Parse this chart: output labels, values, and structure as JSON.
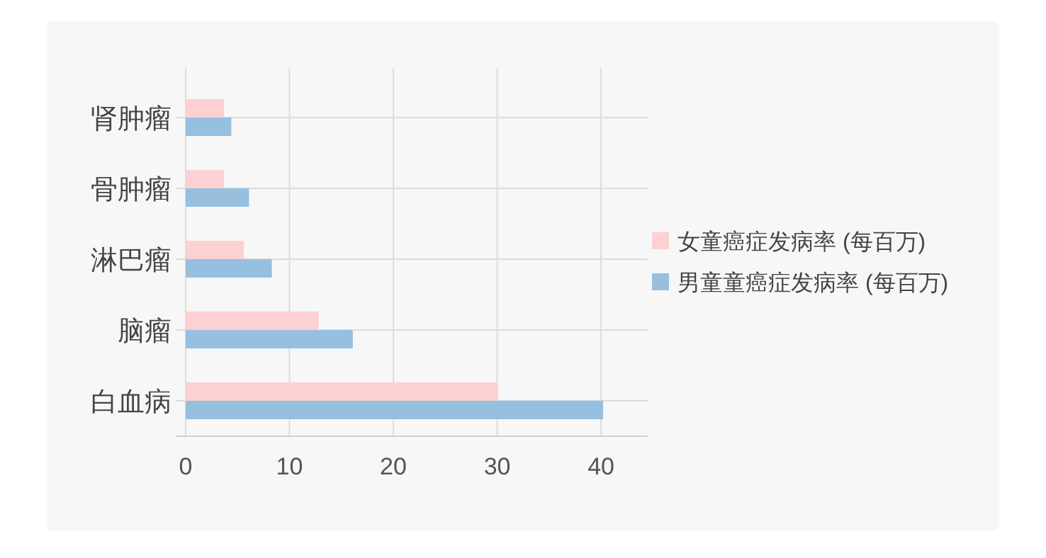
{
  "chart_data": {
    "type": "bar",
    "orientation": "horizontal",
    "categories": [
      "肾肿瘤",
      "骨肿瘤",
      "淋巴瘤",
      "脑瘤",
      "白血病"
    ],
    "series": [
      {
        "name": "女童癌症发病率 (每百万)",
        "color": "#fdd0d2",
        "values": [
          3.7,
          3.7,
          5.6,
          12.8,
          30.1
        ]
      },
      {
        "name": "男童童癌症发病率 (每百万)",
        "color": "#97bfe0",
        "values": [
          4.4,
          6.1,
          8.3,
          16.1,
          40.2
        ]
      }
    ],
    "xlim": [
      0,
      44.5
    ],
    "xticks": [
      0,
      10,
      20,
      30,
      40
    ],
    "grid": true,
    "legend": "right"
  }
}
